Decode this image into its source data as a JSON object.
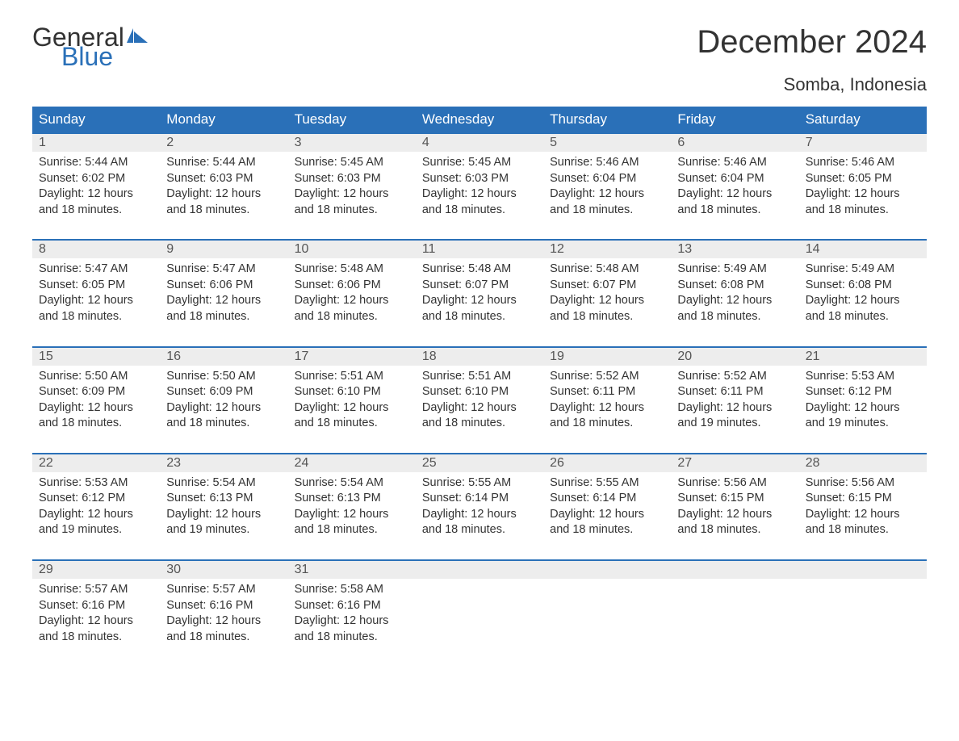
{
  "logo": {
    "line1": "General",
    "line2": "Blue"
  },
  "title": "December 2024",
  "location": "Somba, Indonesia",
  "colors": {
    "header_bg": "#2a70b8",
    "header_text": "#ffffff",
    "daynum_bg": "#ededed",
    "daynum_text": "#555555",
    "body_text": "#333333",
    "row_divider": "#2a70b8",
    "page_bg": "#ffffff",
    "logo_accent": "#2a70b8"
  },
  "typography": {
    "title_fontsize": 40,
    "subtitle_fontsize": 22,
    "dayheader_fontsize": 17,
    "daynum_fontsize": 16,
    "cell_fontsize": 14.5,
    "logo_fontsize": 32,
    "font_family": "Arial"
  },
  "day_headers": [
    "Sunday",
    "Monday",
    "Tuesday",
    "Wednesday",
    "Thursday",
    "Friday",
    "Saturday"
  ],
  "weeks": [
    [
      {
        "n": "1",
        "sunrise": "5:44 AM",
        "sunset": "6:02 PM",
        "daylight": "12 hours and 18 minutes."
      },
      {
        "n": "2",
        "sunrise": "5:44 AM",
        "sunset": "6:03 PM",
        "daylight": "12 hours and 18 minutes."
      },
      {
        "n": "3",
        "sunrise": "5:45 AM",
        "sunset": "6:03 PM",
        "daylight": "12 hours and 18 minutes."
      },
      {
        "n": "4",
        "sunrise": "5:45 AM",
        "sunset": "6:03 PM",
        "daylight": "12 hours and 18 minutes."
      },
      {
        "n": "5",
        "sunrise": "5:46 AM",
        "sunset": "6:04 PM",
        "daylight": "12 hours and 18 minutes."
      },
      {
        "n": "6",
        "sunrise": "5:46 AM",
        "sunset": "6:04 PM",
        "daylight": "12 hours and 18 minutes."
      },
      {
        "n": "7",
        "sunrise": "5:46 AM",
        "sunset": "6:05 PM",
        "daylight": "12 hours and 18 minutes."
      }
    ],
    [
      {
        "n": "8",
        "sunrise": "5:47 AM",
        "sunset": "6:05 PM",
        "daylight": "12 hours and 18 minutes."
      },
      {
        "n": "9",
        "sunrise": "5:47 AM",
        "sunset": "6:06 PM",
        "daylight": "12 hours and 18 minutes."
      },
      {
        "n": "10",
        "sunrise": "5:48 AM",
        "sunset": "6:06 PM",
        "daylight": "12 hours and 18 minutes."
      },
      {
        "n": "11",
        "sunrise": "5:48 AM",
        "sunset": "6:07 PM",
        "daylight": "12 hours and 18 minutes."
      },
      {
        "n": "12",
        "sunrise": "5:48 AM",
        "sunset": "6:07 PM",
        "daylight": "12 hours and 18 minutes."
      },
      {
        "n": "13",
        "sunrise": "5:49 AM",
        "sunset": "6:08 PM",
        "daylight": "12 hours and 18 minutes."
      },
      {
        "n": "14",
        "sunrise": "5:49 AM",
        "sunset": "6:08 PM",
        "daylight": "12 hours and 18 minutes."
      }
    ],
    [
      {
        "n": "15",
        "sunrise": "5:50 AM",
        "sunset": "6:09 PM",
        "daylight": "12 hours and 18 minutes."
      },
      {
        "n": "16",
        "sunrise": "5:50 AM",
        "sunset": "6:09 PM",
        "daylight": "12 hours and 18 minutes."
      },
      {
        "n": "17",
        "sunrise": "5:51 AM",
        "sunset": "6:10 PM",
        "daylight": "12 hours and 18 minutes."
      },
      {
        "n": "18",
        "sunrise": "5:51 AM",
        "sunset": "6:10 PM",
        "daylight": "12 hours and 18 minutes."
      },
      {
        "n": "19",
        "sunrise": "5:52 AM",
        "sunset": "6:11 PM",
        "daylight": "12 hours and 18 minutes."
      },
      {
        "n": "20",
        "sunrise": "5:52 AM",
        "sunset": "6:11 PM",
        "daylight": "12 hours and 19 minutes."
      },
      {
        "n": "21",
        "sunrise": "5:53 AM",
        "sunset": "6:12 PM",
        "daylight": "12 hours and 19 minutes."
      }
    ],
    [
      {
        "n": "22",
        "sunrise": "5:53 AM",
        "sunset": "6:12 PM",
        "daylight": "12 hours and 19 minutes."
      },
      {
        "n": "23",
        "sunrise": "5:54 AM",
        "sunset": "6:13 PM",
        "daylight": "12 hours and 19 minutes."
      },
      {
        "n": "24",
        "sunrise": "5:54 AM",
        "sunset": "6:13 PM",
        "daylight": "12 hours and 18 minutes."
      },
      {
        "n": "25",
        "sunrise": "5:55 AM",
        "sunset": "6:14 PM",
        "daylight": "12 hours and 18 minutes."
      },
      {
        "n": "26",
        "sunrise": "5:55 AM",
        "sunset": "6:14 PM",
        "daylight": "12 hours and 18 minutes."
      },
      {
        "n": "27",
        "sunrise": "5:56 AM",
        "sunset": "6:15 PM",
        "daylight": "12 hours and 18 minutes."
      },
      {
        "n": "28",
        "sunrise": "5:56 AM",
        "sunset": "6:15 PM",
        "daylight": "12 hours and 18 minutes."
      }
    ],
    [
      {
        "n": "29",
        "sunrise": "5:57 AM",
        "sunset": "6:16 PM",
        "daylight": "12 hours and 18 minutes."
      },
      {
        "n": "30",
        "sunrise": "5:57 AM",
        "sunset": "6:16 PM",
        "daylight": "12 hours and 18 minutes."
      },
      {
        "n": "31",
        "sunrise": "5:58 AM",
        "sunset": "6:16 PM",
        "daylight": "12 hours and 18 minutes."
      },
      null,
      null,
      null,
      null
    ]
  ],
  "labels": {
    "sunrise_prefix": "Sunrise: ",
    "sunset_prefix": "Sunset: ",
    "daylight_prefix": "Daylight: "
  }
}
